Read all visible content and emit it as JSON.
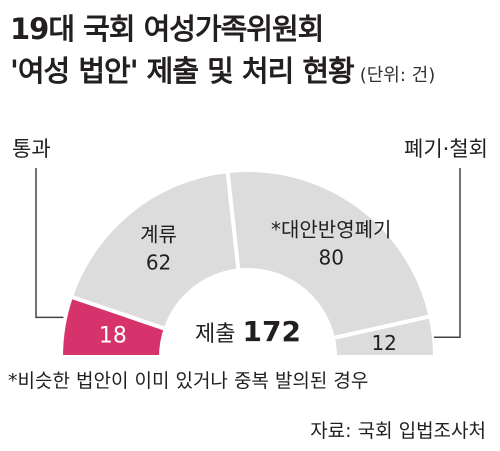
{
  "title": {
    "line1": "19대 국회 여성가족위원회",
    "line2": "'여성 법안' 제출 및 처리 현황",
    "unit": "(단위: 건)"
  },
  "footnote": "*비슷한 법안이 이미 있거나 중복 발의된 경우",
  "source": "자료: 국회 입법조사처",
  "colors": {
    "passed": "#d6336c",
    "other": "#dcdcdc",
    "divider": "#ffffff",
    "leader": "#444444",
    "text_dark": "#231f20",
    "text_on_accent": "#ffffff"
  },
  "chart_data": {
    "type": "pie",
    "subtype": "half-donut",
    "center_label": "제출",
    "total": 172,
    "slices": [
      {
        "label": "통과",
        "value": 18,
        "color": "#d6336c",
        "label_position": "outside-left"
      },
      {
        "label": "계류",
        "value": 62,
        "color": "#dcdcdc",
        "label_position": "inside"
      },
      {
        "label": "*대안반영폐기",
        "value": 80,
        "color": "#dcdcdc",
        "label_position": "inside"
      },
      {
        "label": "폐기·철회",
        "value": 12,
        "color": "#dcdcdc",
        "label_position": "outside-right"
      }
    ]
  }
}
